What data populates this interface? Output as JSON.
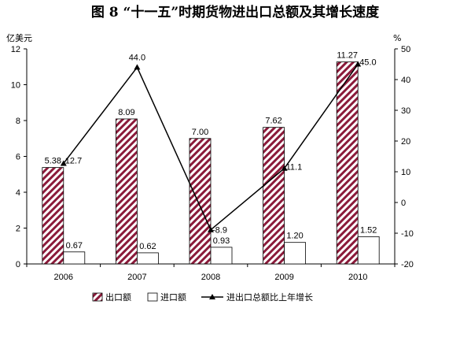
{
  "chart_data": {
    "type": "bar",
    "title": "图 8  “十一五”时期货物进出口总额及其增长速度",
    "categories": [
      "2006",
      "2007",
      "2008",
      "2009",
      "2010"
    ],
    "series": [
      {
        "name": "出口额",
        "values": [
          5.38,
          8.09,
          7.0,
          7.62,
          11.27
        ],
        "labels": [
          "5.38",
          "8.09",
          "7.00",
          "7.62",
          "11.27"
        ],
        "style": "hatched",
        "color": "#8b1a3a"
      },
      {
        "name": "进口额",
        "values": [
          0.67,
          0.62,
          0.93,
          1.2,
          1.52
        ],
        "labels": [
          "0.67",
          "0.62",
          "0.93",
          "1.20",
          "1.52"
        ],
        "style": "outline",
        "color": "#000000"
      },
      {
        "name": "进出口总额比上年增长",
        "type": "line",
        "axis": "right",
        "values": [
          12.7,
          44.0,
          -8.9,
          11.1,
          45.0
        ],
        "labels": [
          "12.7",
          "44.0",
          "-8.9",
          "11.1",
          "45.0"
        ],
        "color": "#000000",
        "marker": "triangle"
      }
    ],
    "y_left": {
      "unit": "亿美元",
      "ylim": [
        0,
        12
      ],
      "ticks": [
        "0",
        "2",
        "4",
        "6",
        "8",
        "10",
        "12"
      ]
    },
    "y_right": {
      "unit": "%",
      "ylim": [
        -20,
        50
      ],
      "ticks": [
        "-20",
        "-10",
        "0",
        "10",
        "20",
        "30",
        "40",
        "50"
      ]
    },
    "grid": false,
    "legend_position": "bottom"
  }
}
